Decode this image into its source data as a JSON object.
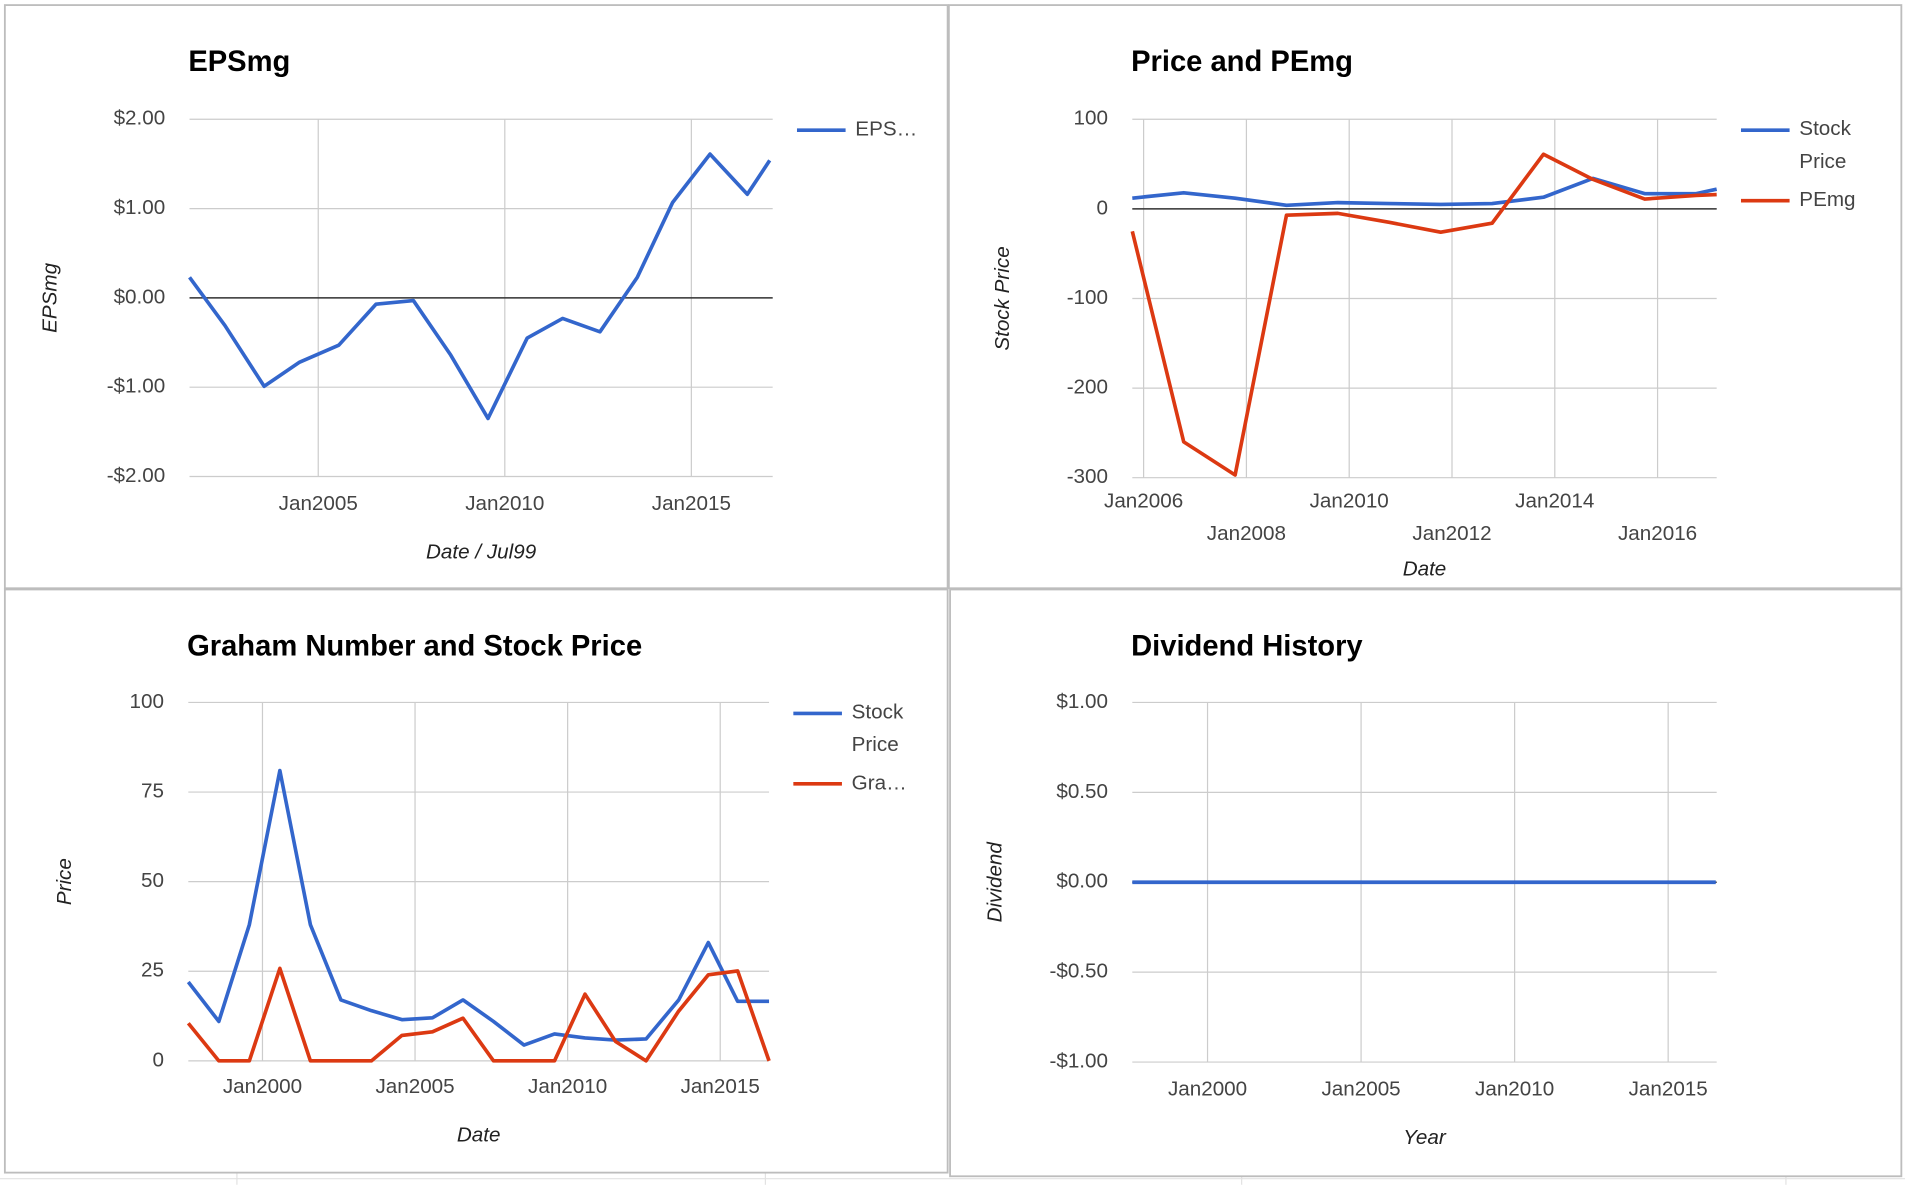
{
  "chart_data": [
    {
      "type": "line",
      "title": "EPSmg",
      "y_label": "EPSmg",
      "x_label": "Date / Jul99",
      "legend": "right",
      "grid": true,
      "x": [
        2001.55,
        2002.5,
        2003.55,
        2004.5,
        2005.55,
        2006.55,
        2007.55,
        2008.55,
        2009.55,
        2010.6,
        2011.55,
        2012.55,
        2013.55,
        2014.5,
        2015.5,
        2016.5,
        2017.1
      ],
      "series": [
        {
          "name": "EPS…",
          "color": "#3366cc",
          "values": [
            0.23,
            -0.31,
            -0.99,
            -0.72,
            -0.53,
            -0.07,
            -0.03,
            -0.64,
            -1.35,
            -0.45,
            -0.23,
            -0.38,
            0.23,
            1.07,
            1.61,
            1.16,
            1.54
          ]
        }
      ],
      "xlim": [
        2001.55,
        2017.18
      ],
      "xticks": [
        {
          "value": 2005,
          "label": "Jan2005"
        },
        {
          "value": 2010,
          "label": "Jan2010"
        },
        {
          "value": 2015,
          "label": "Jan2015"
        }
      ],
      "ylim": [
        -2,
        2
      ],
      "yticks": [
        {
          "value": -2,
          "label": "-$2.00"
        },
        {
          "value": -1,
          "label": "-$1.00"
        },
        {
          "value": 0,
          "label": "$0.00"
        },
        {
          "value": 1,
          "label": "$1.00"
        },
        {
          "value": 2,
          "label": "$2.00"
        }
      ]
    },
    {
      "type": "line",
      "title": "Price and PEmg",
      "y_label": "Stock Price",
      "x_label": "Date",
      "legend": "right",
      "grid": true,
      "x": [
        2005.78,
        2006.78,
        2007.78,
        2008.78,
        2009.78,
        2010.78,
        2011.78,
        2012.78,
        2013.78,
        2014.74,
        2015.75,
        2016.75,
        2017.15
      ],
      "series": [
        {
          "name": "Stock Price",
          "color": "#3366cc",
          "values": [
            12,
            18,
            12,
            4,
            7,
            6,
            5,
            6,
            13,
            34,
            17,
            17,
            22
          ]
        },
        {
          "name": "PEmg",
          "color": "#dc3912",
          "values": [
            -25,
            -260,
            -297,
            -7,
            -5,
            -15,
            -26,
            -16,
            61,
            33,
            11,
            15,
            16
          ]
        }
      ],
      "xlim": [
        2005.78,
        2017.15
      ],
      "xticks": [
        {
          "value": 2006,
          "label": "Jan2006"
        },
        {
          "value": 2008,
          "label": "Jan2008"
        },
        {
          "value": 2010,
          "label": "Jan2010"
        },
        {
          "value": 2012,
          "label": "Jan2012"
        },
        {
          "value": 2014,
          "label": "Jan2014"
        },
        {
          "value": 2016,
          "label": "Jan2016"
        }
      ],
      "ylim": [
        -300,
        100
      ],
      "yticks": [
        -300,
        -200,
        -100,
        0,
        100
      ]
    },
    {
      "type": "line",
      "title": "Graham Number and Stock Price",
      "y_label": "Price",
      "x_label": "Date",
      "legend": "right",
      "grid": true,
      "x": [
        1997.57,
        1998.57,
        1999.57,
        2000.57,
        2001.57,
        2002.57,
        2003.57,
        2004.57,
        2005.57,
        2006.57,
        2007.57,
        2008.57,
        2009.57,
        2010.57,
        2011.57,
        2012.57,
        2013.64,
        2014.61,
        2015.57,
        2016.6
      ],
      "series": [
        {
          "name": "Stock Price",
          "color": "#3366cc",
          "values": [
            22,
            11,
            38,
            81,
            38,
            17,
            14,
            11.5,
            12,
            17,
            11,
            4.4,
            7.5,
            6.4,
            5.8,
            6.1,
            17,
            33,
            16.6,
            16.6
          ]
        },
        {
          "name": "Gra…",
          "color": "#dc3912",
          "values": [
            10.5,
            0,
            0,
            25.8,
            0,
            0,
            0,
            7.1,
            8.1,
            11.9,
            0,
            0,
            0,
            18.6,
            5.4,
            0,
            13.9,
            24,
            25.1,
            0
          ]
        }
      ],
      "xlim": [
        1997.57,
        2016.6
      ],
      "xticks": [
        {
          "value": 2000,
          "label": "Jan2000"
        },
        {
          "value": 2005,
          "label": "Jan2005"
        },
        {
          "value": 2010,
          "label": "Jan2010"
        },
        {
          "value": 2015,
          "label": "Jan2015"
        }
      ],
      "ylim": [
        0,
        100
      ],
      "yticks": [
        0,
        25,
        50,
        75,
        100
      ]
    },
    {
      "type": "line",
      "title": "Dividend History",
      "y_label": "Dividend",
      "x_label": "Year",
      "grid": true,
      "x": [
        1997.55,
        1998.55,
        1999.55,
        2000.55,
        2001.55,
        2002.55,
        2003.55,
        2004.55,
        2005.55,
        2006.55,
        2007.55,
        2008.55,
        2009.55,
        2010.55,
        2011.55,
        2012.55,
        2013.55,
        2014.55,
        2015.55,
        2016.55
      ],
      "series": [
        {
          "color": "#3366cc",
          "values": [
            0,
            0,
            0,
            0,
            0,
            0,
            0,
            0,
            0,
            0,
            0,
            0,
            0,
            0,
            0,
            0,
            0,
            0,
            0,
            0
          ]
        }
      ],
      "xlim": [
        1997.55,
        2016.58
      ],
      "xticks": [
        {
          "value": 2000,
          "label": "Jan2000"
        },
        {
          "value": 2005,
          "label": "Jan2005"
        },
        {
          "value": 2010,
          "label": "Jan2010"
        },
        {
          "value": 2015,
          "label": "Jan2015"
        }
      ],
      "ylim": [
        -1,
        1
      ],
      "yticks": [
        {
          "value": -1,
          "label": "-$1.00"
        },
        {
          "value": -0.5,
          "label": "-$0.50"
        },
        {
          "value": 0,
          "label": "$0.00"
        },
        {
          "value": 0.5,
          "label": "$0.50"
        },
        {
          "value": 1,
          "label": "$1.00"
        }
      ]
    }
  ]
}
